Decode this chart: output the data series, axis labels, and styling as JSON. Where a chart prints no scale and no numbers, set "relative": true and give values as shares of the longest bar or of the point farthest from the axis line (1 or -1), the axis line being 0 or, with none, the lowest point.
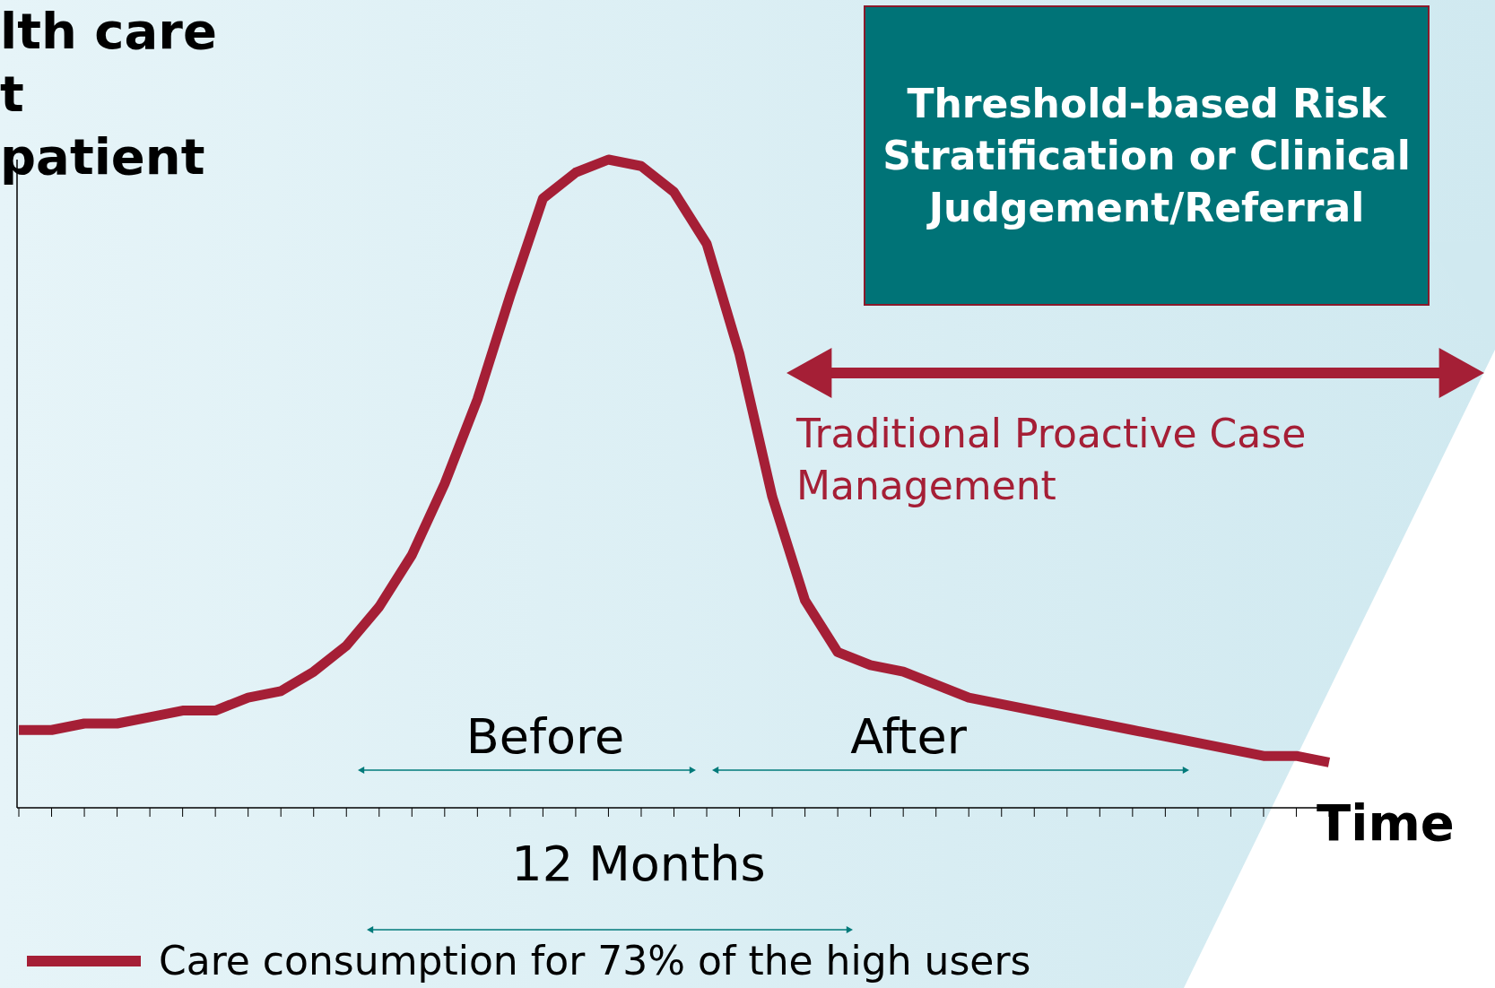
{
  "chart_data": {
    "type": "line",
    "relative": true,
    "ylabel": "lth care\nt\npatient",
    "xlabel": "Time",
    "categories": [
      null,
      null,
      null,
      null,
      null,
      null,
      null,
      null,
      null,
      null,
      null,
      null,
      null,
      null,
      null,
      null,
      null,
      null,
      null,
      null,
      null,
      null,
      null,
      null,
      null,
      null,
      null,
      null,
      null,
      null,
      null,
      null,
      null,
      null,
      null,
      null,
      null,
      null,
      null,
      null,
      null
    ],
    "series": [
      {
        "name": "Care consumption for 73% of the high users",
        "color": "#a51f36",
        "values": [
          0.12,
          0.12,
          0.13,
          0.13,
          0.14,
          0.15,
          0.15,
          0.17,
          0.18,
          0.21,
          0.25,
          0.31,
          0.39,
          0.5,
          0.63,
          0.79,
          0.94,
          0.98,
          1,
          0.99,
          0.95,
          0.87,
          0.7,
          0.48,
          0.32,
          0.24,
          0.22,
          0.21,
          0.19,
          0.17,
          0.16,
          0.15,
          0.14,
          0.13,
          0.12,
          0.11,
          0.1,
          0.09,
          0.08,
          0.08,
          0.07
        ]
      }
    ],
    "annotations": [
      "Threshold-based Risk Stratification or Clinical Judgement/Referral",
      "Traditional Proactive Case Management",
      "Before",
      "After",
      "12 Months"
    ],
    "legend": "bottom left",
    "marker": "none",
    "line_style": "solid",
    "grid": false
  }
}
